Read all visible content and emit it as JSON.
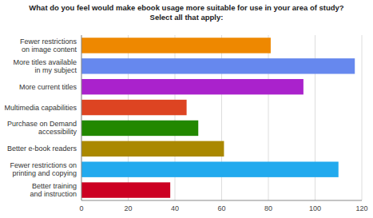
{
  "chart_data": {
    "type": "bar",
    "orientation": "horizontal",
    "title": "What do you feel would make ebook usage more suitable for use in your area of study?\nSelect all that apply:",
    "categories": [
      "Better training\nand instruction",
      "Fewer restrictions on\nprinting and copying",
      "Better e-book readers",
      "Purchase on Demand\naccessibility",
      "Multimedia capabilities",
      "More current titles",
      "More titles available\nin my subject",
      "Fewer restrictions\non image content"
    ],
    "values": [
      38,
      110,
      61,
      50,
      45,
      95,
      117,
      81
    ],
    "colors": [
      "#cc0022",
      "#22aaee",
      "#aa8800",
      "#228800",
      "#dd4422",
      "#aa22cc",
      "#6688ee",
      "#ee8800"
    ],
    "xlim": [
      0,
      120
    ],
    "xticks": [
      0,
      20,
      40,
      60,
      80,
      100,
      120
    ],
    "grid": true
  }
}
